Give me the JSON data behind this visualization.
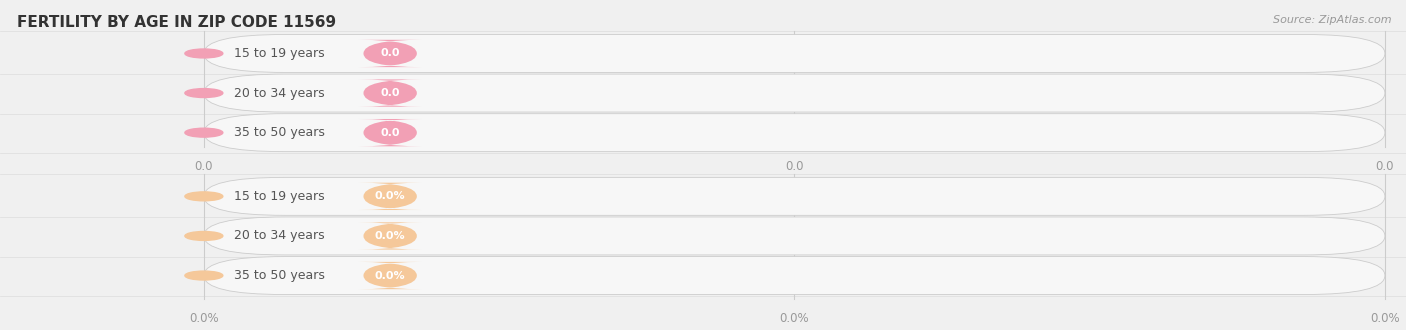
{
  "title": "FERTILITY BY AGE IN ZIP CODE 11569",
  "source_text": "Source: ZipAtlas.com",
  "background_color": "#f0f0f0",
  "bar_track_color": "#f7f7f7",
  "top_series": {
    "categories": [
      "15 to 19 years",
      "20 to 34 years",
      "35 to 50 years"
    ],
    "values": [
      0.0,
      0.0,
      0.0
    ],
    "bar_color": "#f2a0b5",
    "value_texts": [
      "0.0",
      "0.0",
      "0.0"
    ],
    "tick_labels": [
      "0.0",
      "0.0",
      "0.0"
    ]
  },
  "bottom_series": {
    "categories": [
      "15 to 19 years",
      "20 to 34 years",
      "35 to 50 years"
    ],
    "values": [
      0.0,
      0.0,
      0.0
    ],
    "bar_color": "#f5c89a",
    "value_texts": [
      "0.0%",
      "0.0%",
      "0.0%"
    ],
    "tick_labels": [
      "0.0%",
      "0.0%",
      "0.0%"
    ]
  },
  "fig_width": 14.06,
  "fig_height": 3.3,
  "fig_dpi": 100,
  "title_fontsize": 11,
  "source_fontsize": 8,
  "label_fontsize": 9,
  "value_fontsize": 8,
  "tick_fontsize": 8.5,
  "grid_color": "#cccccc",
  "separator_color": "#dddddd",
  "text_color": "#555555",
  "tick_color": "#999999"
}
